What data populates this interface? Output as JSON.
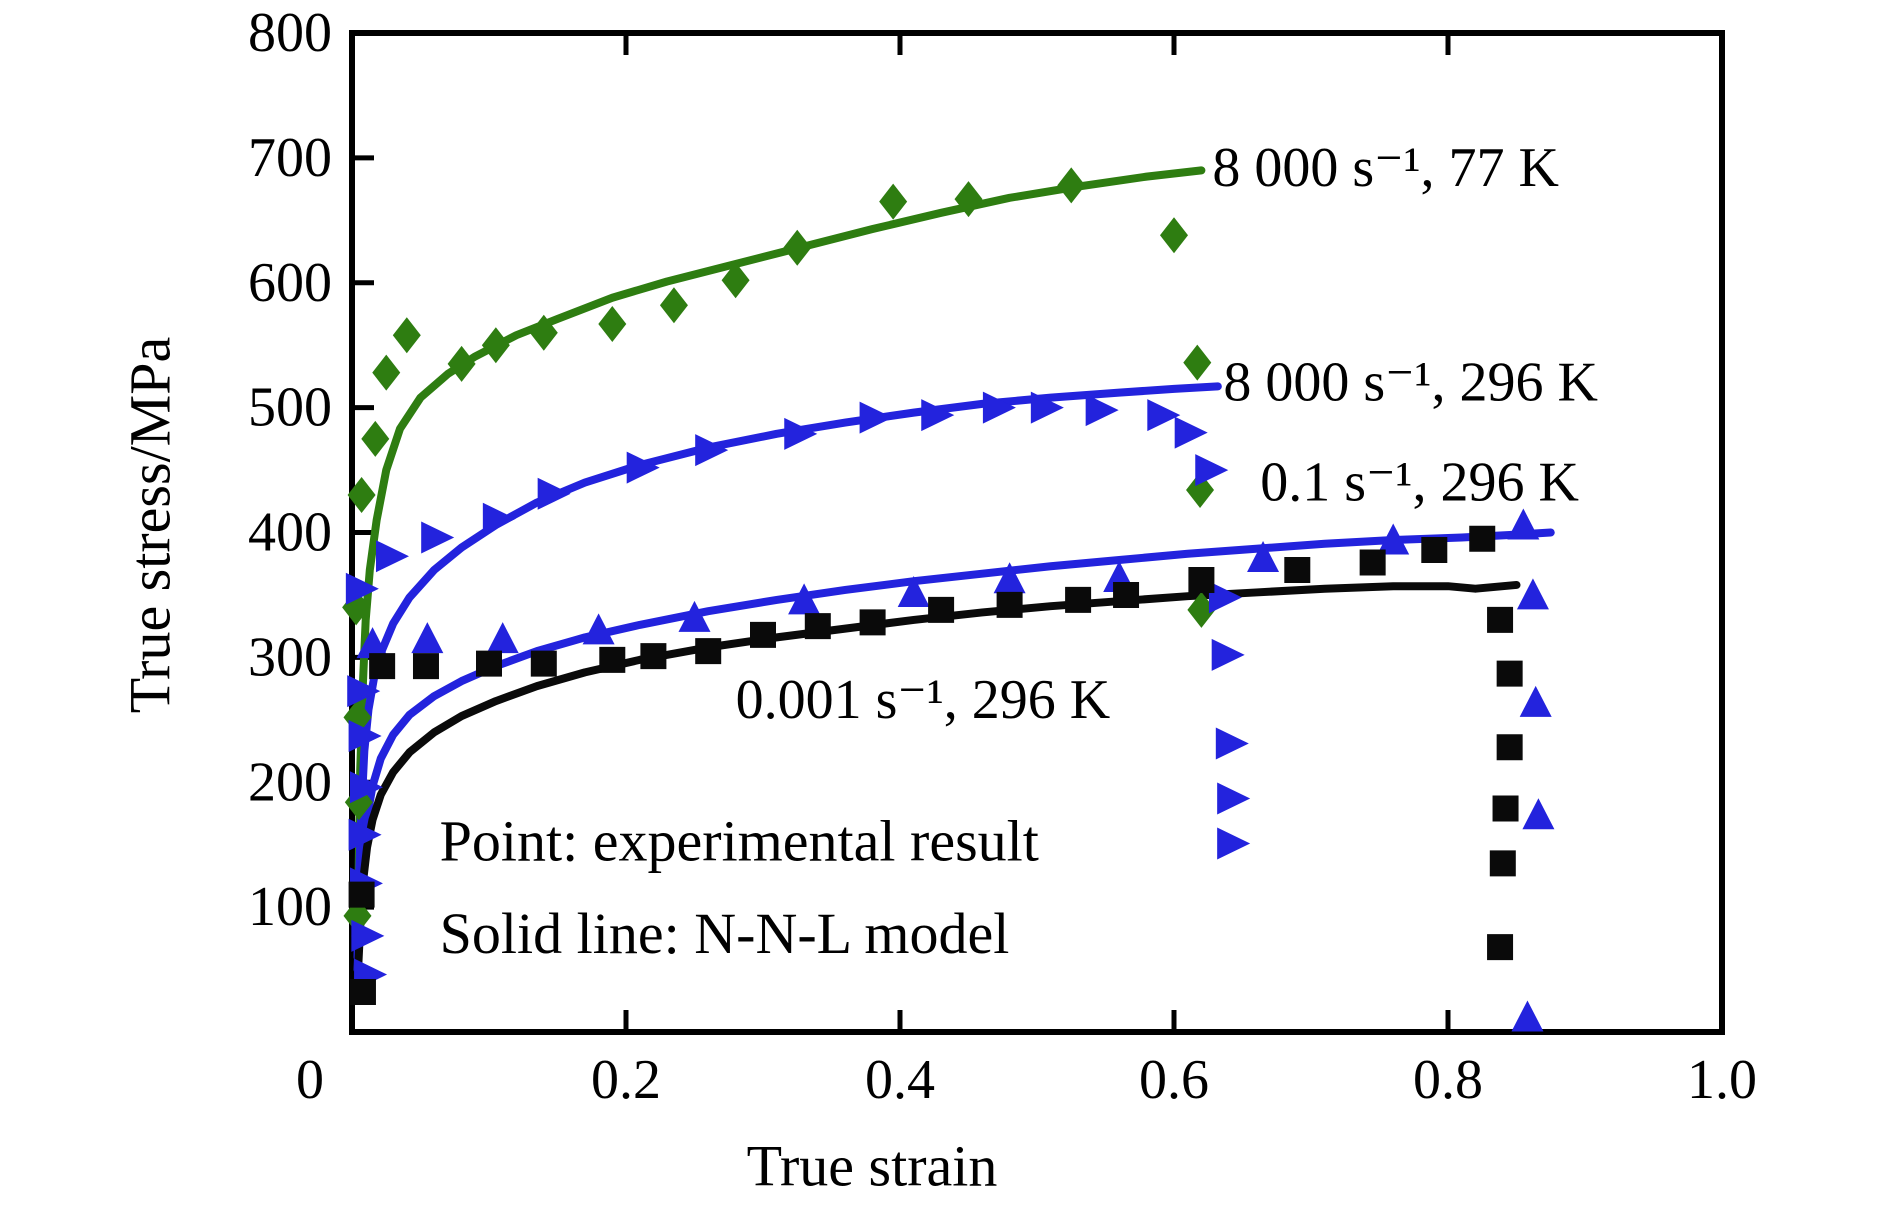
{
  "figure": {
    "background": "#ffffff"
  },
  "chart_data": {
    "type": "line",
    "title": "",
    "xlabel": "True strain",
    "ylabel": "True stress/MPa",
    "xlim": [
      0,
      1.0
    ],
    "ylim": [
      0,
      800
    ],
    "grid": false,
    "frame": true,
    "axis_color": "#000000",
    "x_ticks": [
      0,
      0.2,
      0.4,
      0.6,
      0.8,
      1.0
    ],
    "x_tick_labels": [
      "0",
      "0.2",
      "0.4",
      "0.6",
      "0.8",
      "1.0"
    ],
    "x_tick_label_dx": [
      -42,
      0,
      0,
      0,
      0,
      0
    ],
    "y_ticks": [
      100,
      200,
      300,
      400,
      500,
      600,
      700,
      800
    ],
    "y_tick_labels": [
      "100",
      "200",
      "300",
      "400",
      "500",
      "600",
      "700",
      "800"
    ],
    "legend_note": "labels drawn inline next to curves, no legend box",
    "annotations": [
      {
        "text": "Point: experimental result",
        "x": 0.064,
        "y": 153
      },
      {
        "text": "Solid line: N-N-L model",
        "x": 0.064,
        "y": 79
      }
    ],
    "series": [
      {
        "id": "8000s-77K",
        "label": "8 000 s⁻¹, 77 K",
        "color": "#2e7d11",
        "marker": "diamond",
        "label_anchor": {
          "x": 0.628,
          "y": 692
        },
        "line": [
          [
            0.004,
            70
          ],
          [
            0.005,
            140
          ],
          [
            0.006,
            210
          ],
          [
            0.008,
            280
          ],
          [
            0.01,
            330
          ],
          [
            0.013,
            370
          ],
          [
            0.018,
            410
          ],
          [
            0.025,
            450
          ],
          [
            0.035,
            483
          ],
          [
            0.05,
            508
          ],
          [
            0.07,
            527
          ],
          [
            0.09,
            541
          ],
          [
            0.12,
            558
          ],
          [
            0.15,
            571
          ],
          [
            0.19,
            588
          ],
          [
            0.23,
            601
          ],
          [
            0.28,
            615
          ],
          [
            0.33,
            629
          ],
          [
            0.38,
            643
          ],
          [
            0.43,
            656
          ],
          [
            0.48,
            668
          ],
          [
            0.53,
            677
          ],
          [
            0.58,
            685
          ],
          [
            0.62,
            690
          ]
        ],
        "points": [
          [
            0.003,
            340
          ],
          [
            0.004,
            252
          ],
          [
            0.005,
            184
          ],
          [
            0.004,
            93
          ],
          [
            0.007,
            430
          ],
          [
            0.017,
            475
          ],
          [
            0.025,
            528
          ],
          [
            0.04,
            558
          ],
          [
            0.08,
            535
          ],
          [
            0.105,
            550
          ],
          [
            0.14,
            560
          ],
          [
            0.19,
            567
          ],
          [
            0.235,
            582
          ],
          [
            0.28,
            602
          ],
          [
            0.325,
            628
          ],
          [
            0.395,
            665
          ],
          [
            0.45,
            667
          ],
          [
            0.525,
            678
          ],
          [
            0.6,
            638
          ],
          [
            0.617,
            536
          ],
          [
            0.619,
            434
          ],
          [
            0.62,
            338
          ]
        ]
      },
      {
        "id": "8000s-296K",
        "label": "8 000 s⁻¹, 296 K",
        "color": "#2323dd",
        "marker": "triangle-right",
        "label_anchor": {
          "x": 0.636,
          "y": 520
        },
        "line": [
          [
            0.004,
            60
          ],
          [
            0.005,
            120
          ],
          [
            0.007,
            180
          ],
          [
            0.009,
            225
          ],
          [
            0.012,
            258
          ],
          [
            0.016,
            283
          ],
          [
            0.022,
            306
          ],
          [
            0.03,
            327
          ],
          [
            0.042,
            348
          ],
          [
            0.06,
            370
          ],
          [
            0.08,
            388
          ],
          [
            0.105,
            406
          ],
          [
            0.135,
            424
          ],
          [
            0.17,
            440
          ],
          [
            0.21,
            454
          ],
          [
            0.26,
            468
          ],
          [
            0.31,
            479
          ],
          [
            0.36,
            488
          ],
          [
            0.41,
            496
          ],
          [
            0.46,
            503
          ],
          [
            0.51,
            508
          ],
          [
            0.56,
            512
          ],
          [
            0.6,
            515
          ],
          [
            0.632,
            517
          ]
        ],
        "points": [
          [
            0.005,
            355
          ],
          [
            0.006,
            273
          ],
          [
            0.007,
            237
          ],
          [
            0.008,
            196
          ],
          [
            0.007,
            158
          ],
          [
            0.008,
            119
          ],
          [
            0.009,
            77
          ],
          [
            0.011,
            46
          ],
          [
            0.027,
            381
          ],
          [
            0.06,
            396
          ],
          [
            0.105,
            411
          ],
          [
            0.145,
            431
          ],
          [
            0.21,
            452
          ],
          [
            0.26,
            466
          ],
          [
            0.325,
            479
          ],
          [
            0.38,
            492
          ],
          [
            0.425,
            494
          ],
          [
            0.47,
            500
          ],
          [
            0.505,
            500
          ],
          [
            0.545,
            498
          ],
          [
            0.59,
            494
          ],
          [
            0.61,
            480
          ],
          [
            0.625,
            450
          ],
          [
            0.635,
            348
          ],
          [
            0.637,
            302
          ],
          [
            0.64,
            231
          ],
          [
            0.641,
            187
          ],
          [
            0.641,
            151
          ]
        ]
      },
      {
        "id": "0p1s-296K",
        "label": "0.1 s⁻¹, 296 K",
        "color": "#2323dd",
        "marker": "triangle-up",
        "label_anchor": {
          "x": 0.663,
          "y": 440
        },
        "line": [
          [
            0.004,
            50
          ],
          [
            0.006,
            100
          ],
          [
            0.008,
            140
          ],
          [
            0.011,
            172
          ],
          [
            0.015,
            197
          ],
          [
            0.021,
            219
          ],
          [
            0.03,
            238
          ],
          [
            0.042,
            254
          ],
          [
            0.06,
            269
          ],
          [
            0.08,
            281
          ],
          [
            0.105,
            293
          ],
          [
            0.135,
            305
          ],
          [
            0.17,
            316
          ],
          [
            0.21,
            326
          ],
          [
            0.26,
            337
          ],
          [
            0.31,
            346
          ],
          [
            0.36,
            354
          ],
          [
            0.41,
            361
          ],
          [
            0.46,
            367
          ],
          [
            0.51,
            373
          ],
          [
            0.56,
            378
          ],
          [
            0.61,
            383
          ],
          [
            0.66,
            387
          ],
          [
            0.71,
            391
          ],
          [
            0.76,
            394
          ],
          [
            0.81,
            396
          ],
          [
            0.845,
            398
          ],
          [
            0.875,
            400
          ]
        ],
        "points": [
          [
            0.015,
            309
          ],
          [
            0.055,
            313
          ],
          [
            0.11,
            313
          ],
          [
            0.18,
            320
          ],
          [
            0.25,
            330
          ],
          [
            0.33,
            344
          ],
          [
            0.41,
            350
          ],
          [
            0.48,
            361
          ],
          [
            0.56,
            362
          ],
          [
            0.665,
            378
          ],
          [
            0.76,
            392
          ],
          [
            0.855,
            404
          ],
          [
            0.862,
            348
          ],
          [
            0.864,
            262
          ],
          [
            0.866,
            172
          ],
          [
            0.858,
            10
          ]
        ]
      },
      {
        "id": "0p001s-296K",
        "label": "0.001 s⁻¹, 296 K",
        "color": "#0a0a0a",
        "marker": "square",
        "label_anchor": {
          "x": 0.28,
          "y": 266
        },
        "line": [
          [
            0.004,
            40
          ],
          [
            0.006,
            85
          ],
          [
            0.008,
            120
          ],
          [
            0.011,
            148
          ],
          [
            0.015,
            170
          ],
          [
            0.021,
            190
          ],
          [
            0.03,
            208
          ],
          [
            0.042,
            224
          ],
          [
            0.06,
            240
          ],
          [
            0.08,
            253
          ],
          [
            0.105,
            265
          ],
          [
            0.135,
            277
          ],
          [
            0.17,
            288
          ],
          [
            0.21,
            298
          ],
          [
            0.26,
            308
          ],
          [
            0.31,
            316
          ],
          [
            0.36,
            323
          ],
          [
            0.41,
            330
          ],
          [
            0.46,
            336
          ],
          [
            0.51,
            341
          ],
          [
            0.56,
            345
          ],
          [
            0.61,
            349
          ],
          [
            0.66,
            352
          ],
          [
            0.71,
            355
          ],
          [
            0.76,
            357
          ],
          [
            0.8,
            357
          ],
          [
            0.82,
            355
          ],
          [
            0.85,
            358
          ]
        ],
        "points": [
          [
            0.007,
            110
          ],
          [
            0.008,
            32
          ],
          [
            0.022,
            293
          ],
          [
            0.054,
            293
          ],
          [
            0.1,
            295
          ],
          [
            0.14,
            295
          ],
          [
            0.19,
            298
          ],
          [
            0.22,
            301
          ],
          [
            0.26,
            305
          ],
          [
            0.3,
            318
          ],
          [
            0.34,
            325
          ],
          [
            0.38,
            328
          ],
          [
            0.43,
            338
          ],
          [
            0.48,
            342
          ],
          [
            0.53,
            346
          ],
          [
            0.565,
            350
          ],
          [
            0.62,
            362
          ],
          [
            0.69,
            370
          ],
          [
            0.745,
            376
          ],
          [
            0.79,
            386
          ],
          [
            0.825,
            395
          ],
          [
            0.838,
            330
          ],
          [
            0.845,
            287
          ],
          [
            0.845,
            228
          ],
          [
            0.842,
            179
          ],
          [
            0.84,
            135
          ],
          [
            0.838,
            68
          ]
        ]
      }
    ]
  }
}
